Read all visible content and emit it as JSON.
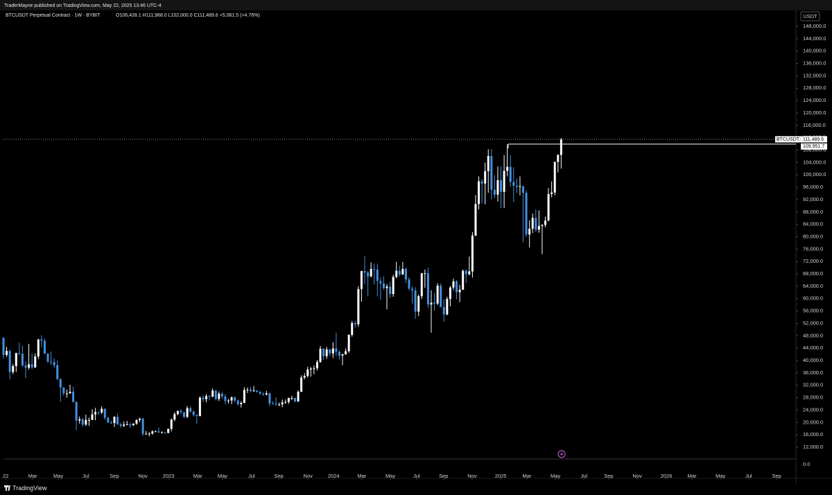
{
  "chart_data": {
    "type": "candlestick",
    "header": "TraderMayne published on TradingView.com, May 22, 2025 13:46 UTC-4",
    "symbol": "BTCUSDT Perpetual Contract · 1W · BYBIT",
    "ohlc_text": "O106,428.1 H111,968.0 L102,000.0 C111,489.6 +5,061.5 (+4.76%)",
    "currency": "USDT",
    "brand": "TradingView",
    "up_color": "#ffffff",
    "down_color": "#4391e0",
    "ylim": [
      8191,
      149792
    ],
    "xlim": [
      -1.1,
      250.1
    ],
    "open": [
      47300,
      41800,
      43100,
      36300,
      38200,
      42400,
      42200,
      38400,
      37700,
      38800,
      37800,
      41300,
      46800,
      46400,
      42200,
      39700,
      39500,
      38500,
      34000,
      31300,
      29400,
      29400,
      29900,
      26600,
      20600,
      21000,
      19300,
      20800,
      20800,
      22600,
      23300,
      23200,
      24400,
      21500,
      20000,
      19800,
      21800,
      19400,
      18900,
      19300,
      19400,
      19100,
      19600,
      20800,
      21200,
      16300,
      16300,
      16400,
      17100,
      17100,
      16800,
      16800,
      16600,
      17900,
      20900,
      22700,
      23700,
      23300,
      21800,
      24600,
      23500,
      22400,
      22100,
      28000,
      27500,
      28500,
      28300,
      30300,
      27600,
      29300,
      28400,
      26900,
      27100,
      28100,
      27100,
      25900,
      26300,
      30500,
      30600,
      30200,
      30300,
      29900,
      29300,
      29000,
      29400,
      26100,
      26000,
      25800,
      25800,
      26500,
      26600,
      27900,
      27900,
      26800,
      29900,
      34500,
      35000,
      37100,
      37400,
      37500,
      39500,
      43800,
      41400,
      43600,
      42300,
      43900,
      42800,
      41600,
      42000,
      43000,
      48300,
      52100,
      51700,
      63100,
      68900,
      68400,
      67200,
      69600,
      69400,
      65700,
      64900,
      63400,
      63900,
      61500,
      67000,
      69000,
      67800,
      69600,
      66200,
      63200,
      62700,
      55800,
      60800,
      68200,
      68200,
      58100,
      58700,
      58400,
      64200,
      57300,
      54900,
      59900,
      63600,
      65600,
      62100,
      62900,
      69000,
      67900,
      68800,
      80400,
      90600,
      97900,
      97200,
      101200,
      106100,
      95200,
      93600,
      98300,
      94500,
      101300,
      102600,
      97700,
      96500,
      96100,
      96300,
      94200,
      80700,
      82600,
      86100,
      82300,
      83500,
      83800,
      85200,
      93800,
      94300,
      104200,
      106428.1
    ],
    "high": [
      47600,
      44400,
      43500,
      38900,
      42500,
      45800,
      44800,
      39800,
      45400,
      42300,
      42300,
      47000,
      48200,
      47100,
      42400,
      42900,
      40800,
      40000,
      34200,
      31300,
      30600,
      32200,
      31600,
      26800,
      21900,
      21500,
      22500,
      21600,
      24300,
      24700,
      23600,
      25200,
      24500,
      21900,
      20600,
      22000,
      22800,
      19900,
      20300,
      20500,
      19900,
      19700,
      21000,
      21500,
      21500,
      17200,
      16800,
      17400,
      17400,
      18400,
      17100,
      16900,
      18000,
      21300,
      23300,
      23900,
      24300,
      23400,
      25300,
      25200,
      23900,
      22600,
      28400,
      28900,
      29200,
      28800,
      31000,
      30500,
      30000,
      29800,
      29200,
      27600,
      28400,
      28400,
      27300,
      26800,
      31400,
      31300,
      31400,
      31800,
      30400,
      30100,
      29700,
      30200,
      29700,
      26800,
      28100,
      26400,
      27400,
      27400,
      28000,
      28600,
      28000,
      30400,
      35200,
      35900,
      38000,
      37900,
      38400,
      40200,
      44700,
      44000,
      44400,
      43800,
      45900,
      49000,
      43200,
      42200,
      43900,
      48500,
      52800,
      52900,
      64000,
      69000,
      73800,
      68900,
      71700,
      71300,
      71300,
      66900,
      67200,
      64700,
      65500,
      67700,
      71900,
      70600,
      71900,
      70000,
      66900,
      64000,
      63700,
      61300,
      68300,
      69400,
      70000,
      62700,
      61800,
      65000,
      64900,
      59800,
      60600,
      64100,
      66500,
      66000,
      64500,
      69400,
      69500,
      73600,
      81500,
      93500,
      99500,
      98700,
      104000,
      108300,
      108300,
      99900,
      102700,
      102700,
      106400,
      109900,
      106400,
      102500,
      98800,
      99500,
      96500,
      95000,
      85300,
      87500,
      88800,
      88500,
      84000,
      86500,
      95800,
      97900,
      104300,
      106700,
      111968.0
    ],
    "low": [
      40600,
      41200,
      34000,
      35600,
      36300,
      41700,
      38000,
      34300,
      37100,
      37200,
      37600,
      40500,
      44200,
      42100,
      39200,
      38500,
      37700,
      33700,
      26700,
      28600,
      28000,
      29300,
      26500,
      17600,
      19600,
      18600,
      18900,
      18900,
      20800,
      20700,
      22400,
      22700,
      20800,
      19800,
      19500,
      18500,
      19200,
      18200,
      18500,
      19100,
      18200,
      18900,
      19200,
      20100,
      15600,
      16200,
      15500,
      16000,
      16900,
      16500,
      16400,
      16300,
      16500,
      17100,
      20400,
      22300,
      22700,
      21400,
      21400,
      23100,
      21900,
      19600,
      21900,
      26600,
      26500,
      27200,
      28200,
      27100,
      26900,
      27700,
      25800,
      26100,
      25900,
      26500,
      25400,
      24800,
      26200,
      29500,
      29700,
      29900,
      29600,
      28900,
      28600,
      28700,
      25200,
      25800,
      25300,
      25300,
      24900,
      26000,
      26000,
      27200,
      26500,
      26600,
      29800,
      33900,
      34500,
      34800,
      35600,
      36800,
      39300,
      40200,
      40500,
      41500,
      40800,
      41500,
      40300,
      38500,
      41900,
      42500,
      47700,
      50600,
      50900,
      59000,
      64600,
      60800,
      66900,
      64500,
      60700,
      59600,
      62800,
      56500,
      60200,
      60600,
      66600,
      67100,
      67700,
      65000,
      62700,
      58400,
      53500,
      54300,
      59900,
      63500,
      57100,
      49000,
      56100,
      57900,
      57200,
      52500,
      54600,
      57500,
      62700,
      59800,
      58900,
      62800,
      65100,
      67500,
      66800,
      80200,
      88800,
      90800,
      90500,
      94200,
      92100,
      92500,
      91400,
      89200,
      89300,
      99500,
      96200,
      91200,
      94100,
      93400,
      78200,
      80000,
      76600,
      81200,
      81600,
      81300,
      74400,
      83100,
      85100,
      92800,
      93400,
      100800,
      102000.0
    ],
    "close": [
      41800,
      43100,
      36300,
      38200,
      42400,
      42200,
      38400,
      37700,
      38800,
      37800,
      41300,
      46800,
      46400,
      42200,
      39700,
      39500,
      38500,
      34000,
      31300,
      29400,
      29400,
      29900,
      26600,
      20600,
      21000,
      19300,
      20800,
      20800,
      22600,
      23300,
      23200,
      24400,
      21500,
      20000,
      19800,
      21800,
      19400,
      18900,
      19300,
      19400,
      19100,
      19600,
      20800,
      21200,
      16300,
      16300,
      16400,
      17100,
      17100,
      16800,
      16800,
      16600,
      17900,
      20900,
      22700,
      23700,
      23300,
      21800,
      24600,
      23500,
      22400,
      22100,
      28000,
      27500,
      28500,
      28300,
      30300,
      27600,
      29300,
      28400,
      26900,
      27100,
      28100,
      27100,
      25900,
      26300,
      30500,
      30600,
      30200,
      30300,
      29900,
      29300,
      29000,
      29400,
      26100,
      26000,
      25800,
      25800,
      26500,
      26600,
      27900,
      27900,
      26800,
      29900,
      34500,
      35000,
      37100,
      37400,
      37500,
      39500,
      43800,
      41400,
      43600,
      42300,
      43900,
      42800,
      41600,
      42000,
      43000,
      48300,
      52100,
      51700,
      63100,
      68900,
      68400,
      67200,
      69600,
      69400,
      65700,
      64900,
      63400,
      63900,
      61500,
      67000,
      69000,
      67800,
      69600,
      66200,
      63200,
      62700,
      55800,
      60800,
      68200,
      68200,
      58100,
      58700,
      58400,
      64200,
      57300,
      54900,
      59900,
      63600,
      65600,
      62100,
      62900,
      69000,
      67900,
      68800,
      80400,
      90600,
      97900,
      97200,
      101200,
      106100,
      95200,
      93600,
      98300,
      94500,
      101300,
      102600,
      97700,
      96500,
      96100,
      96300,
      94200,
      80700,
      82600,
      86100,
      82300,
      83500,
      83800,
      85200,
      93800,
      94300,
      104200,
      106428.1,
      111489.6
    ],
    "yticks": [
      {
        "value": 148000,
        "label": "148,000.0"
      },
      {
        "value": 144000,
        "label": "144,000.0"
      },
      {
        "value": 140000,
        "label": "140,000.0"
      },
      {
        "value": 136000,
        "label": "136,000.0"
      },
      {
        "value": 132000,
        "label": "132,000.0"
      },
      {
        "value": 128000,
        "label": "128,000.0"
      },
      {
        "value": 124000,
        "label": "124,000.0"
      },
      {
        "value": 120000,
        "label": "120,000.0"
      },
      {
        "value": 116000,
        "label": "116,000.0"
      },
      {
        "value": 112000,
        "label": "112,000.0"
      },
      {
        "value": 108000,
        "label": "108,000.0"
      },
      {
        "value": 104000,
        "label": "104,000.0"
      },
      {
        "value": 100000,
        "label": "100,000.0"
      },
      {
        "value": 96000,
        "label": "96,000.0"
      },
      {
        "value": 92000,
        "label": "92,000.0"
      },
      {
        "value": 88000,
        "label": "88,000.0"
      },
      {
        "value": 84000,
        "label": "84,000.0"
      },
      {
        "value": 80000,
        "label": "80,000.0"
      },
      {
        "value": 76000,
        "label": "76,000.0"
      },
      {
        "value": 72000,
        "label": "72,000.0"
      },
      {
        "value": 68000,
        "label": "68,000.0"
      },
      {
        "value": 64000,
        "label": "64,000.0"
      },
      {
        "value": 60000,
        "label": "60,000.0"
      },
      {
        "value": 56000,
        "label": "56,000.0"
      },
      {
        "value": 52000,
        "label": "52,000.0"
      },
      {
        "value": 48000,
        "label": "48,000.0"
      },
      {
        "value": 44000,
        "label": "44,000.0"
      },
      {
        "value": 40000,
        "label": "40,000.0"
      },
      {
        "value": 36000,
        "label": "36,000.0"
      },
      {
        "value": 32000,
        "label": "32,000.0"
      },
      {
        "value": 28000,
        "label": "28,000.0"
      },
      {
        "value": 24000,
        "label": "24,000.0"
      },
      {
        "value": 20000,
        "label": "20,000.0"
      },
      {
        "value": 16000,
        "label": "16,000.0"
      },
      {
        "value": 12000,
        "label": "12,000.0"
      }
    ],
    "xticks": [
      {
        "value": 0.7,
        "label": "22"
      },
      {
        "value": 9.2,
        "label": "Mar"
      },
      {
        "value": 17.3,
        "label": "May"
      },
      {
        "value": 26.0,
        "label": "Jul"
      },
      {
        "value": 35.0,
        "label": "Sep"
      },
      {
        "value": 44.0,
        "label": "Nov"
      },
      {
        "value": 52.1,
        "label": "2023"
      },
      {
        "value": 61.3,
        "label": "Mar"
      },
      {
        "value": 69.1,
        "label": "May"
      },
      {
        "value": 78.3,
        "label": "Jul"
      },
      {
        "value": 86.9,
        "label": "Sep"
      },
      {
        "value": 96.1,
        "label": "Nov"
      },
      {
        "value": 104.2,
        "label": "2024"
      },
      {
        "value": 113.1,
        "label": "Mar"
      },
      {
        "value": 122.1,
        "label": "May"
      },
      {
        "value": 130.4,
        "label": "Jul"
      },
      {
        "value": 138.9,
        "label": "Sep"
      },
      {
        "value": 147.9,
        "label": "Nov"
      },
      {
        "value": 156.9,
        "label": "2025"
      },
      {
        "value": 165.2,
        "label": "Mar"
      },
      {
        "value": 174.2,
        "label": "May"
      },
      {
        "value": 183.2,
        "label": "Jul"
      },
      {
        "value": 191.0,
        "label": "Sep"
      },
      {
        "value": 200.0,
        "label": "Nov"
      },
      {
        "value": 209.2,
        "label": "2026"
      },
      {
        "value": 217.3,
        "label": "Mar"
      },
      {
        "value": 226.3,
        "label": "May"
      },
      {
        "value": 235.2,
        "label": "Jul"
      },
      {
        "value": 244.0,
        "label": "Sep"
      }
    ],
    "last_price": {
      "name": "BTCUSDT.P",
      "value": 111489.6,
      "label": "111,489.6"
    },
    "hline": {
      "value": 109951.7,
      "label": "109,951.7"
    },
    "subpane_yticks": [
      {
        "value": 0,
        "label": "0.0"
      }
    ]
  }
}
